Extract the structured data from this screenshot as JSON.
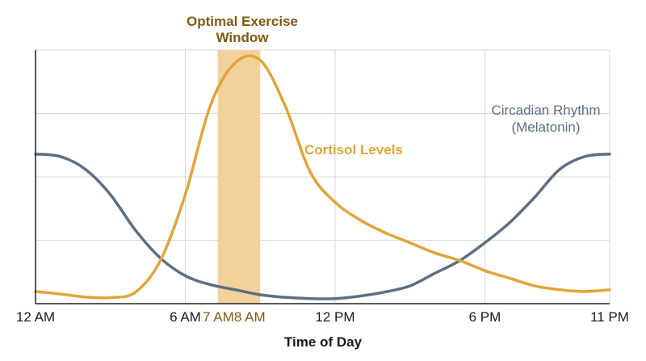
{
  "chart_data": {
    "type": "line",
    "xlabel": "Time of Day",
    "x_unit": "hour",
    "xlim": [
      0,
      23
    ],
    "ylim": [
      0,
      100
    ],
    "grid": true,
    "x_ticks": [
      {
        "x": 0,
        "label": "12 AM"
      },
      {
        "x": 6,
        "label": "6 AM"
      },
      {
        "x": 12,
        "label": "12 PM"
      },
      {
        "x": 18,
        "label": "6 PM"
      },
      {
        "x": 23,
        "label": "11 PM"
      }
    ],
    "highlight_ticks": [
      {
        "x": 7,
        "label": "7 AM"
      },
      {
        "x": 8,
        "label": "8 AM"
      }
    ],
    "band": {
      "x0": 7.3,
      "x1": 9.0,
      "label_line1": "Optimal Exercise",
      "label_line2": "Window"
    },
    "series": [
      {
        "name": "Cortisol Levels",
        "points": [
          [
            0,
            4.8
          ],
          [
            1,
            3.8
          ],
          [
            2,
            2.6
          ],
          [
            3,
            2.4
          ],
          [
            4,
            4.5
          ],
          [
            5,
            17
          ],
          [
            6,
            43
          ],
          [
            7,
            78
          ],
          [
            8,
            95
          ],
          [
            9,
            96
          ],
          [
            10,
            78
          ],
          [
            11,
            52
          ],
          [
            12,
            40
          ],
          [
            13,
            33
          ],
          [
            14,
            28
          ],
          [
            15,
            24
          ],
          [
            16,
            20
          ],
          [
            17,
            17
          ],
          [
            18,
            13
          ],
          [
            19,
            10
          ],
          [
            20,
            7
          ],
          [
            21,
            5.5
          ],
          [
            22,
            4.8
          ],
          [
            23,
            5.5
          ]
        ]
      },
      {
        "name_line1": "Circadian Rhythm",
        "name_line2": "(Melatonin)",
        "points": [
          [
            0,
            59
          ],
          [
            1,
            58
          ],
          [
            2,
            53
          ],
          [
            3,
            43
          ],
          [
            4,
            29
          ],
          [
            5,
            18
          ],
          [
            6,
            11
          ],
          [
            7,
            7.5
          ],
          [
            8,
            5.5
          ],
          [
            9,
            3.5
          ],
          [
            10,
            2.5
          ],
          [
            11,
            2
          ],
          [
            12,
            2
          ],
          [
            13,
            3
          ],
          [
            14,
            4.6
          ],
          [
            15,
            7
          ],
          [
            16,
            12
          ],
          [
            17,
            17
          ],
          [
            18,
            24
          ],
          [
            19,
            32
          ],
          [
            20,
            42
          ],
          [
            21,
            53
          ],
          [
            22,
            58
          ],
          [
            23,
            59
          ]
        ]
      }
    ]
  },
  "colors": {
    "cortisol": "#e0a439",
    "melatonin": "#5d6e80",
    "band": "#f2d19a",
    "band_text": "#7c5a10",
    "grid": "#d8d8d8",
    "axis": "#222222"
  }
}
